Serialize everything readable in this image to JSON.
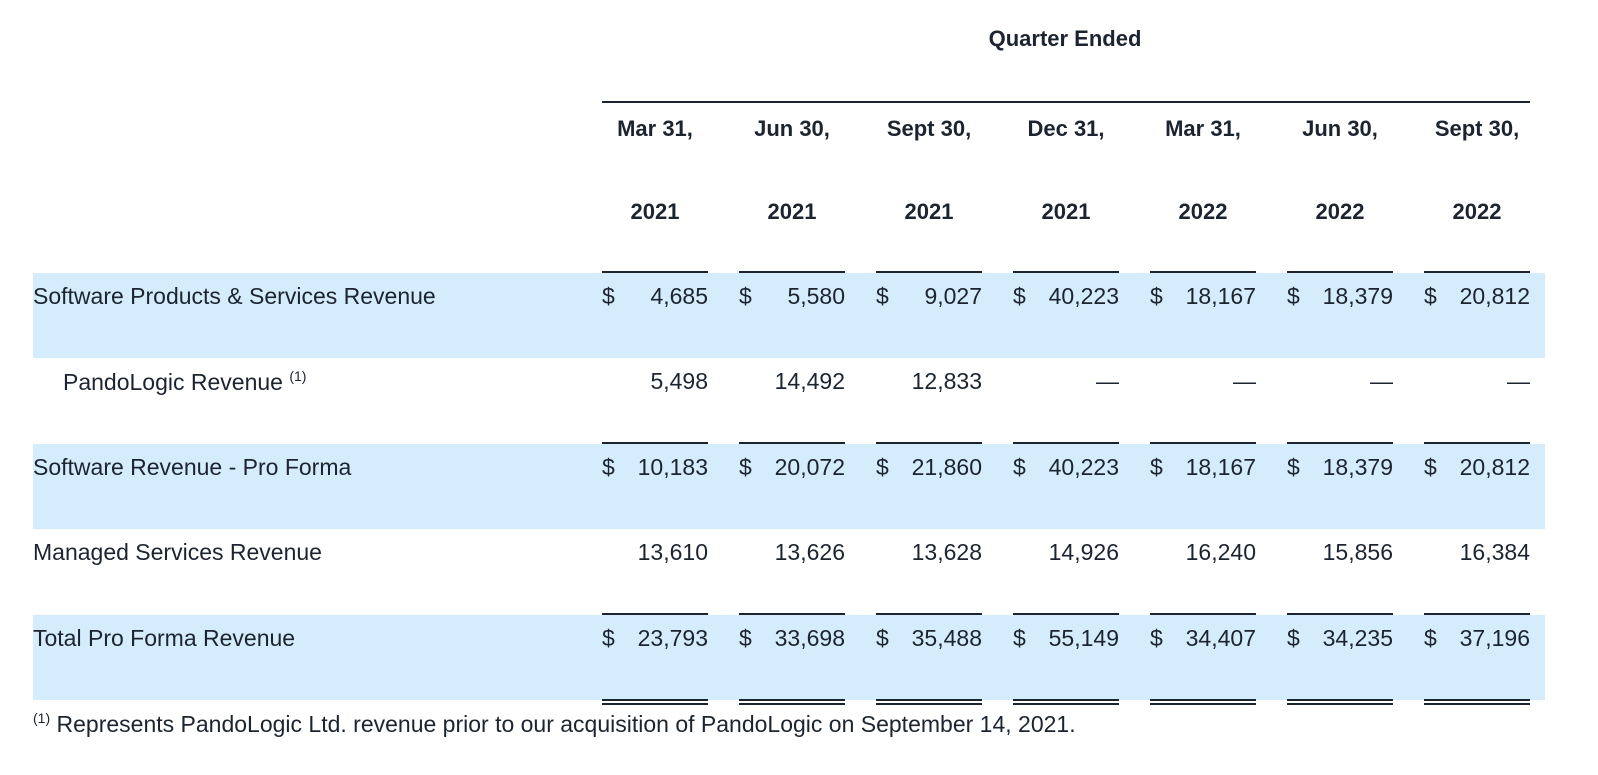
{
  "header": {
    "group_title": "Quarter Ended",
    "columns": [
      {
        "line1": "Mar 31,",
        "line2": "2021"
      },
      {
        "line1": "Jun 30,",
        "line2": "2021"
      },
      {
        "line1": "Sept 30,",
        "line2": "2021"
      },
      {
        "line1": "Dec 31,",
        "line2": "2021"
      },
      {
        "line1": "Mar 31,",
        "line2": "2022"
      },
      {
        "line1": "Jun 30,",
        "line2": "2022"
      },
      {
        "line1": "Sept 30,",
        "line2": "2022"
      }
    ]
  },
  "rows": [
    {
      "label": "Software Products & Services Revenue",
      "footnote_mark": "",
      "currency": "$",
      "values": [
        "4,685",
        "5,580",
        "9,027",
        "40,223",
        "18,167",
        "18,379",
        "20,812"
      ]
    },
    {
      "label": "PandoLogic Revenue",
      "footnote_mark": "(1)",
      "currency": "",
      "values": [
        "5,498",
        "14,492",
        "12,833",
        "—",
        "—",
        "—",
        "—"
      ]
    },
    {
      "label": "Software Revenue - Pro Forma",
      "footnote_mark": "",
      "currency": "$",
      "values": [
        "10,183",
        "20,072",
        "21,860",
        "40,223",
        "18,167",
        "18,379",
        "20,812"
      ]
    },
    {
      "label": "Managed Services Revenue",
      "footnote_mark": "",
      "currency": "",
      "values": [
        "13,610",
        "13,626",
        "13,628",
        "14,926",
        "16,240",
        "15,856",
        "16,384"
      ]
    },
    {
      "label": "Total Pro Forma Revenue",
      "footnote_mark": "",
      "currency": "$",
      "values": [
        "23,793",
        "33,698",
        "35,488",
        "55,149",
        "34,407",
        "34,235",
        "37,196"
      ]
    }
  ],
  "footnote": {
    "mark": "(1)",
    "text": "Represents PandoLogic Ltd. revenue prior to our acquisition of PandoLogic on September 14, 2021."
  },
  "colors": {
    "row_highlight": "#d4ecfb",
    "text": "#1c2430"
  }
}
